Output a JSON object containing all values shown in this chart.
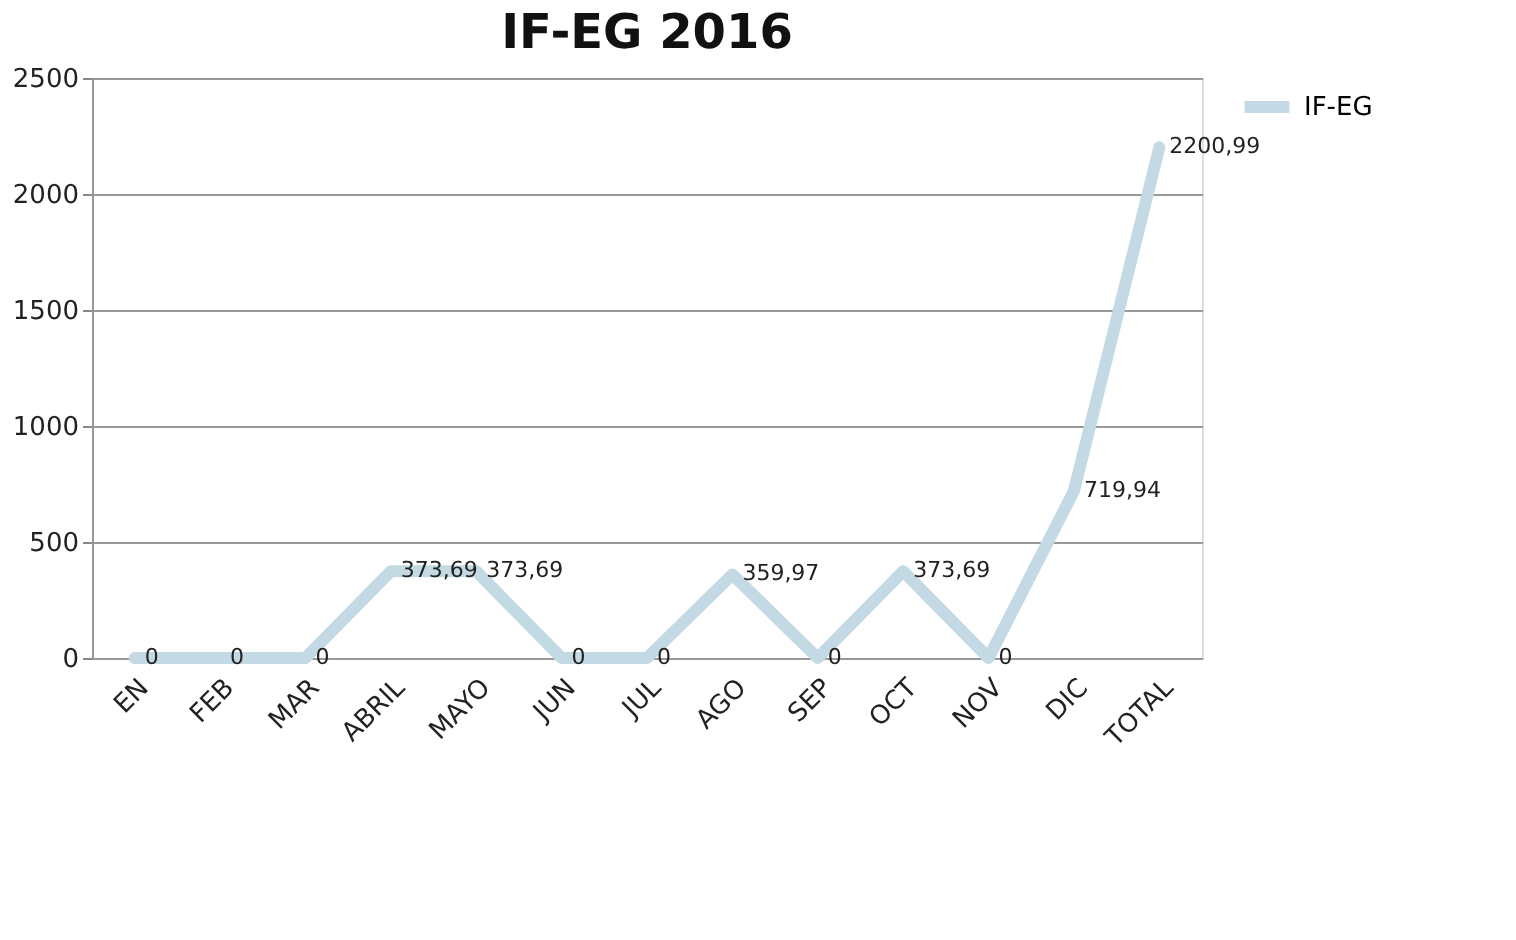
{
  "chart_data": {
    "type": "line",
    "title": "IF-EG 2016",
    "categories": [
      "EN",
      "FEB",
      "MAR",
      "ABRIL",
      "MAYO",
      "JUN",
      "JUL",
      "AGO",
      "SEP",
      "OCT",
      "NOV",
      "DIC",
      "TOTAL"
    ],
    "series": [
      {
        "name": "IF-EG",
        "color": "#c3d9e3",
        "values": [
          0,
          0,
          0,
          373.69,
          373.69,
          0,
          0,
          359.97,
          0,
          373.69,
          0,
          719.94,
          2200.99
        ],
        "value_labels": [
          "0",
          "0",
          "0",
          "373,69",
          "373,69",
          "0",
          "0",
          "359,97",
          "0",
          "373,69",
          "0",
          "719,94",
          "2200,99"
        ]
      }
    ],
    "ylim": [
      0,
      2500
    ],
    "yticks": [
      0,
      500,
      1000,
      1500,
      2000,
      2500
    ],
    "grid": "y",
    "legend": "right"
  }
}
